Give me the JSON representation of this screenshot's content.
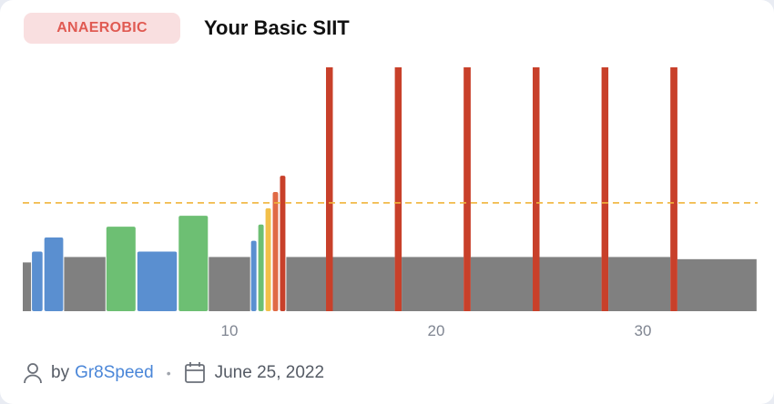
{
  "badge": "ANAEROBIC",
  "title": "Your Basic SIIT",
  "footer": {
    "by_label": "by",
    "author": "Gr8Speed",
    "separator": "•",
    "date": "June 25, 2022"
  },
  "icons": {
    "author": "user-icon",
    "date": "calendar-icon"
  },
  "colors": {
    "badge_bg": "#f9dfe0",
    "badge_text": "#e05a52",
    "zone1": "#808080",
    "zone2": "#5a8fd0",
    "zone3": "#6dbf73",
    "zone4": "#f2c04a",
    "zone5": "#e06a45",
    "zone6": "#c8402a",
    "threshold": "#f0b43a",
    "author_link": "#4a86d8"
  },
  "chart_data": {
    "type": "bar",
    "x_unit": "minutes",
    "x_ticks": [
      10,
      20,
      30
    ],
    "y_unit": "intensity (fraction of threshold)",
    "threshold": 1.0,
    "ylim": [
      0,
      2.25
    ],
    "segments": [
      {
        "start": 0,
        "end": 0.4,
        "intensity": 0.45,
        "zone": "zone1"
      },
      {
        "start": 0.4,
        "end": 1.0,
        "intensity": 0.55,
        "zone": "zone2"
      },
      {
        "start": 1.0,
        "end": 2.0,
        "intensity": 0.68,
        "zone": "zone2"
      },
      {
        "start": 2.0,
        "end": 4.0,
        "intensity": 0.5,
        "zone": "zone1"
      },
      {
        "start": 4.0,
        "end": 5.5,
        "intensity": 0.78,
        "zone": "zone3"
      },
      {
        "start": 5.5,
        "end": 7.5,
        "intensity": 0.55,
        "zone": "zone2"
      },
      {
        "start": 7.5,
        "end": 9.0,
        "intensity": 0.88,
        "zone": "zone3"
      },
      {
        "start": 9.0,
        "end": 11.0,
        "intensity": 0.5,
        "zone": "zone1"
      },
      {
        "start": 11.0,
        "end": 11.35,
        "intensity": 0.65,
        "zone": "zone2"
      },
      {
        "start": 11.35,
        "end": 11.7,
        "intensity": 0.8,
        "zone": "zone3"
      },
      {
        "start": 11.7,
        "end": 12.05,
        "intensity": 0.95,
        "zone": "zone4"
      },
      {
        "start": 12.05,
        "end": 12.4,
        "intensity": 1.1,
        "zone": "zone5"
      },
      {
        "start": 12.4,
        "end": 12.75,
        "intensity": 1.25,
        "zone": "zone6"
      },
      {
        "start": 12.75,
        "end": 14.67,
        "intensity": 0.5,
        "zone": "zone1"
      },
      {
        "start": 14.67,
        "end": 15.0,
        "intensity": 2.25,
        "zone": "zone6"
      },
      {
        "start": 15.0,
        "end": 18.0,
        "intensity": 0.5,
        "zone": "zone1"
      },
      {
        "start": 18.0,
        "end": 18.33,
        "intensity": 2.25,
        "zone": "zone6"
      },
      {
        "start": 18.33,
        "end": 21.33,
        "intensity": 0.5,
        "zone": "zone1"
      },
      {
        "start": 21.33,
        "end": 21.67,
        "intensity": 2.25,
        "zone": "zone6"
      },
      {
        "start": 21.67,
        "end": 24.67,
        "intensity": 0.5,
        "zone": "zone1"
      },
      {
        "start": 24.67,
        "end": 25.0,
        "intensity": 2.25,
        "zone": "zone6"
      },
      {
        "start": 25.0,
        "end": 28.0,
        "intensity": 0.5,
        "zone": "zone1"
      },
      {
        "start": 28.0,
        "end": 28.33,
        "intensity": 2.25,
        "zone": "zone6"
      },
      {
        "start": 28.33,
        "end": 31.33,
        "intensity": 0.5,
        "zone": "zone1"
      },
      {
        "start": 31.33,
        "end": 31.67,
        "intensity": 2.25,
        "zone": "zone6"
      },
      {
        "start": 31.67,
        "end": 35.5,
        "intensity": 0.48,
        "zone": "zone1"
      }
    ]
  }
}
